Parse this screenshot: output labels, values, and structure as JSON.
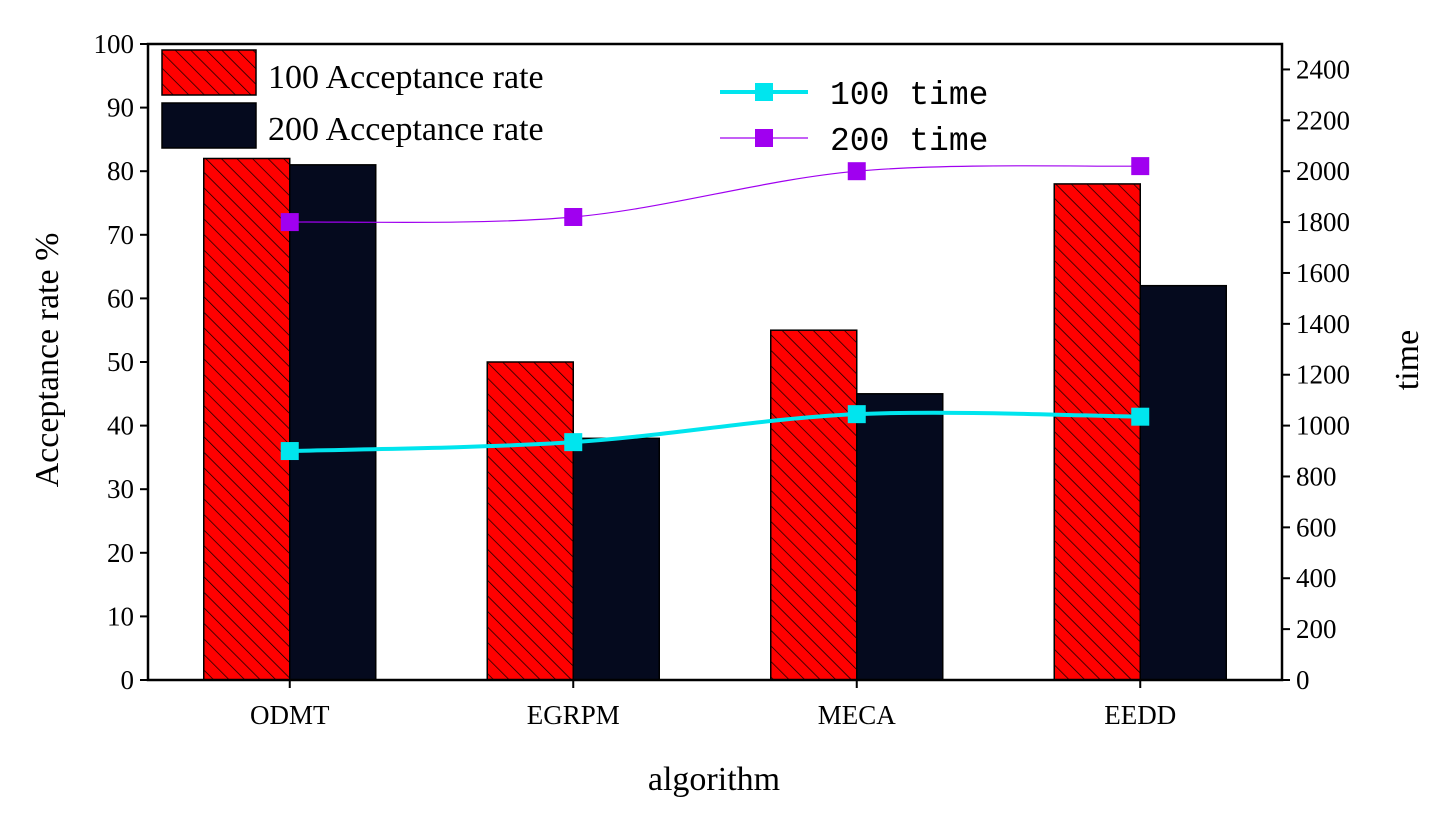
{
  "chart_data": {
    "type": "bar",
    "categories": [
      "ODMT",
      "EGRPM",
      "MECA",
      "EEDD"
    ],
    "xlabel": "algorithm",
    "ylabel": "Acceptance rate %",
    "ylabel_right": "time",
    "ylim": [
      0,
      100
    ],
    "ylim_right": [
      0,
      2500
    ],
    "yticks": [
      0,
      10,
      20,
      30,
      40,
      50,
      60,
      70,
      80,
      90,
      100
    ],
    "yticks_right": [
      0,
      200,
      400,
      600,
      800,
      1000,
      1200,
      1400,
      1600,
      1800,
      2000,
      2200,
      2400
    ],
    "bar_series": [
      {
        "name": "100 Acceptance rate",
        "values": [
          82,
          50,
          55,
          78
        ],
        "color": "#ff0000",
        "hatch": true
      },
      {
        "name": "200 Acceptance rate",
        "values": [
          81,
          38,
          45,
          62
        ],
        "color": "#050a1e",
        "hatch": false
      }
    ],
    "line_series": [
      {
        "name": "100 time",
        "values": [
          900,
          935,
          1045,
          1035
        ],
        "color": "#00e5ee",
        "axis": "right"
      },
      {
        "name": "200 time",
        "values": [
          1800,
          1820,
          2000,
          2020
        ],
        "color": "#a000f0",
        "axis": "right"
      }
    ]
  }
}
